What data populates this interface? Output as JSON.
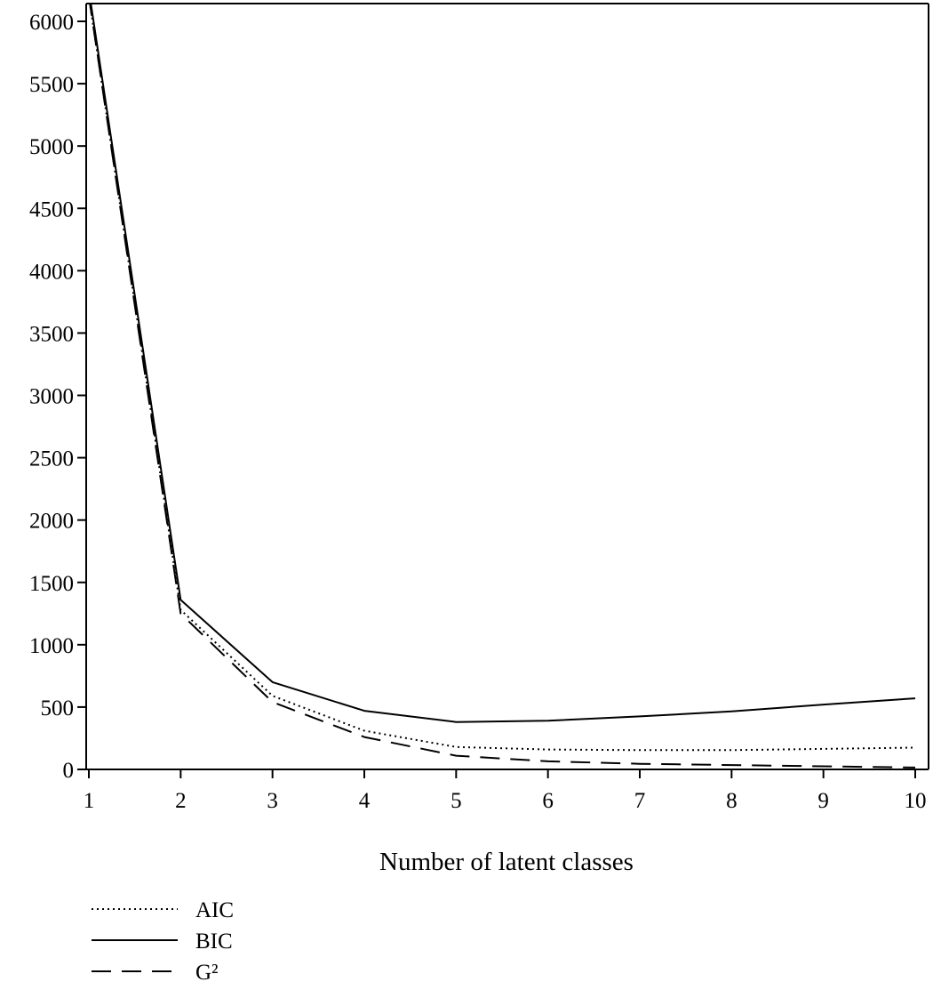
{
  "chart_data": {
    "type": "line",
    "title": "",
    "xlabel": "Number of latent classes",
    "ylabel": "",
    "x": [
      1,
      2,
      3,
      4,
      5,
      6,
      7,
      8,
      9,
      10
    ],
    "xlim": [
      1,
      10
    ],
    "ylim": [
      0,
      6000
    ],
    "x_ticks": [
      "1",
      "2",
      "3",
      "4",
      "5",
      "6",
      "7",
      "8",
      "9",
      "10"
    ],
    "y_ticks": [
      "0",
      "500",
      "1000",
      "1500",
      "2000",
      "2500",
      "3000",
      "3500",
      "4000",
      "4500",
      "5000",
      "5500",
      "6000"
    ],
    "grid": false,
    "legend_position": "bottom-left",
    "series": [
      {
        "name": "AIC",
        "style": "dotted",
        "color": "#000000",
        "values": [
          6200,
          1280,
          590,
          310,
          180,
          160,
          155,
          155,
          165,
          175
        ]
      },
      {
        "name": "BIC",
        "style": "solid",
        "color": "#000000",
        "values": [
          6250,
          1360,
          700,
          470,
          380,
          390,
          425,
          465,
          520,
          570
        ]
      },
      {
        "name": "G²",
        "style": "dashed",
        "color": "#000000",
        "values": [
          6200,
          1250,
          540,
          260,
          110,
          65,
          45,
          35,
          25,
          15
        ]
      }
    ]
  }
}
